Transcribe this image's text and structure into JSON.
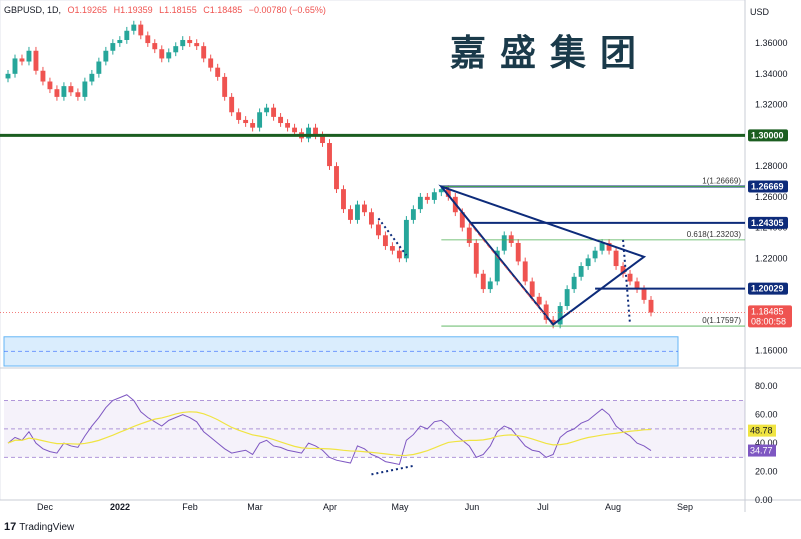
{
  "header": {
    "symbol": "GBPUSD, 1D,",
    "open": "O1.19265",
    "high": "H1.19359",
    "low": "L1.18155",
    "close": "C1.18485",
    "change": "−0.00780 (−0.65%)",
    "currency": "USD"
  },
  "brand": "嘉盛集团",
  "footer": {
    "logo": "17",
    "text": "TradingView"
  },
  "colors": {
    "up": "#26a69a",
    "down": "#ef5350",
    "level_green": "#1b5e20",
    "level_blue": "#0d2b7a",
    "rsi": "#7e57c2",
    "rsi_ma": "#f0e442",
    "zone": "#bbdefb"
  },
  "chart_data": [
    {
      "type": "candlestick",
      "price_axis": {
        "ticks": [
          "1.36000",
          "1.34000",
          "1.32000",
          "1.30000",
          "1.28000",
          "1.26000",
          "1.24000",
          "1.22000",
          "1.20000",
          "1.18000",
          "1.16000"
        ],
        "ylim": [
          1.15,
          1.375
        ]
      },
      "time_axis": {
        "ticks": [
          "Dec",
          "2022",
          "Feb",
          "Mar",
          "Apr",
          "May",
          "Jun",
          "Jul",
          "Aug",
          "Sep"
        ]
      },
      "close_series": [
        1.34,
        1.35,
        1.348,
        1.355,
        1.342,
        1.335,
        1.33,
        1.325,
        1.332,
        1.328,
        1.325,
        1.335,
        1.34,
        1.348,
        1.355,
        1.36,
        1.362,
        1.368,
        1.372,
        1.365,
        1.36,
        1.356,
        1.35,
        1.354,
        1.358,
        1.362,
        1.36,
        1.358,
        1.35,
        1.344,
        1.338,
        1.325,
        1.315,
        1.31,
        1.308,
        1.305,
        1.315,
        1.318,
        1.312,
        1.308,
        1.305,
        1.302,
        1.298,
        1.305,
        1.3,
        1.295,
        1.28,
        1.265,
        1.252,
        1.245,
        1.255,
        1.25,
        1.242,
        1.235,
        1.228,
        1.225,
        1.22,
        1.245,
        1.252,
        1.26,
        1.258,
        1.263,
        1.265,
        1.26,
        1.25,
        1.24,
        1.23,
        1.21,
        1.2,
        1.205,
        1.225,
        1.235,
        1.23,
        1.218,
        1.205,
        1.195,
        1.19,
        1.18,
        1.177,
        1.189,
        1.2,
        1.208,
        1.215,
        1.22,
        1.225,
        1.23,
        1.225,
        1.215,
        1.21,
        1.205,
        1.2,
        1.193,
        1.1848
      ],
      "levels": [
        {
          "label": "1.30000",
          "value": 1.3
        },
        {
          "label": "1.26669",
          "value": 1.26669
        },
        {
          "label": "1.24305",
          "value": 1.24305
        },
        {
          "label": "1.20029",
          "value": 1.20029
        }
      ],
      "last_price": {
        "value": 1.18485,
        "label": "1.18485",
        "countdown": "08:00:58"
      },
      "fib": [
        {
          "label": "1(1.26669)",
          "value": 1.26669
        },
        {
          "label": "0.618(1.23203)",
          "value": 1.23203
        },
        {
          "label": "0(1.17597)",
          "value": 1.17597
        }
      ],
      "demand_zone": [
        1.15,
        1.169
      ]
    },
    {
      "type": "line",
      "name": "RSI",
      "y_axis": {
        "ticks": [
          "80.00",
          "60.00",
          "40.00",
          "20.00",
          "0.00"
        ],
        "ylim": [
          0,
          90
        ]
      },
      "bands": [
        30,
        50,
        70
      ],
      "values": [
        40,
        44,
        42,
        48,
        40,
        36,
        34,
        33,
        40,
        38,
        37,
        45,
        52,
        58,
        65,
        70,
        72,
        74,
        70,
        62,
        58,
        55,
        52,
        56,
        58,
        60,
        58,
        55,
        48,
        44,
        40,
        36,
        33,
        34,
        35,
        32,
        40,
        42,
        38,
        37,
        35,
        34,
        33,
        40,
        38,
        35,
        30,
        28,
        27,
        26,
        38,
        36,
        32,
        30,
        27,
        26,
        25,
        42,
        46,
        52,
        50,
        55,
        56,
        52,
        46,
        42,
        38,
        30,
        32,
        38,
        48,
        52,
        50,
        44,
        38,
        35,
        34,
        30,
        32,
        44,
        48,
        50,
        54,
        56,
        60,
        64,
        60,
        52,
        48,
        45,
        40,
        38,
        34.77
      ],
      "current": [
        "48.78",
        "34.77"
      ]
    }
  ]
}
